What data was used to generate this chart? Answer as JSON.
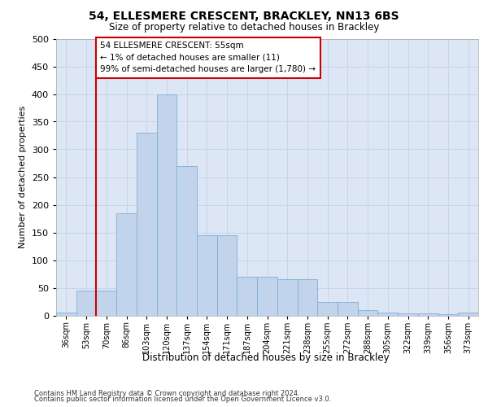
{
  "title": "54, ELLESMERE CRESCENT, BRACKLEY, NN13 6BS",
  "subtitle": "Size of property relative to detached houses in Brackley",
  "xlabel": "Distribution of detached houses by size in Brackley",
  "ylabel": "Number of detached properties",
  "categories": [
    "36sqm",
    "53sqm",
    "70sqm",
    "86sqm",
    "103sqm",
    "120sqm",
    "137sqm",
    "154sqm",
    "171sqm",
    "187sqm",
    "204sqm",
    "221sqm",
    "238sqm",
    "255sqm",
    "272sqm",
    "288sqm",
    "305sqm",
    "322sqm",
    "339sqm",
    "356sqm",
    "373sqm"
  ],
  "values": [
    5,
    45,
    45,
    185,
    330,
    400,
    270,
    145,
    145,
    70,
    70,
    65,
    65,
    25,
    25,
    10,
    5,
    3,
    3,
    2,
    5
  ],
  "bar_color": "#c2d4ec",
  "bar_edge_color": "#7fafd4",
  "vline_color": "#cc0000",
  "vline_x": 1.5,
  "annotation_text": "54 ELLESMERE CRESCENT: 55sqm\n← 1% of detached houses are smaller (11)\n99% of semi-detached houses are larger (1,780) →",
  "annotation_box_facecolor": "#ffffff",
  "annotation_box_edgecolor": "#cc0000",
  "grid_color": "#c8d4e8",
  "axes_bg_color": "#dce6f5",
  "ylim": [
    0,
    500
  ],
  "yticks": [
    0,
    50,
    100,
    150,
    200,
    250,
    300,
    350,
    400,
    450,
    500
  ],
  "footer_line1": "Contains HM Land Registry data © Crown copyright and database right 2024.",
  "footer_line2": "Contains public sector information licensed under the Open Government Licence v3.0."
}
